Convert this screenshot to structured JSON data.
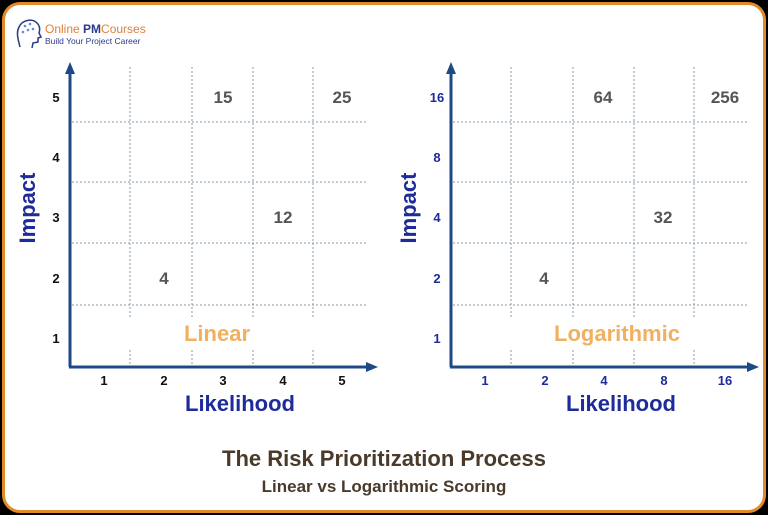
{
  "logo": {
    "name_part1": "Online ",
    "name_part2": "PM",
    "name_part3": "Courses",
    "tagline": "Build Your Project Career"
  },
  "colors": {
    "axis": "#1d4a86",
    "label": "#1e2b9a",
    "cell_value": "#555555",
    "scale_name": "#f0b060",
    "title": "#4a3a2a",
    "border": "#e08a2a"
  },
  "charts": [
    {
      "scale_name": "Linear",
      "x_label": "Likelihood",
      "y_label": "Impact",
      "x_ticks": [
        "1",
        "2",
        "3",
        "4",
        "5"
      ],
      "y_ticks": [
        "1",
        "2",
        "3",
        "4",
        "5"
      ],
      "y_tick_color": "#111111",
      "cells": [
        {
          "col": 3,
          "row": 5,
          "value": "15"
        },
        {
          "col": 5,
          "row": 5,
          "value": "25"
        },
        {
          "col": 4,
          "row": 3,
          "value": "12"
        },
        {
          "col": 2,
          "row": 2,
          "value": "4"
        }
      ]
    },
    {
      "scale_name": "Logarithmic",
      "x_label": "Likelihood",
      "y_label": "Impact",
      "x_ticks": [
        "1",
        "2",
        "4",
        "8",
        "16"
      ],
      "y_ticks": [
        "1",
        "2",
        "4",
        "8",
        "16"
      ],
      "y_tick_color": "#1e2b9a",
      "cells": [
        {
          "col": 3,
          "row": 5,
          "value": "64"
        },
        {
          "col": 5,
          "row": 5,
          "value": "256"
        },
        {
          "col": 4,
          "row": 3,
          "value": "32"
        },
        {
          "col": 2,
          "row": 2,
          "value": "4"
        }
      ]
    }
  ],
  "title": "The Risk Prioritization Process",
  "subtitle": "Linear vs Logarithmic Scoring"
}
